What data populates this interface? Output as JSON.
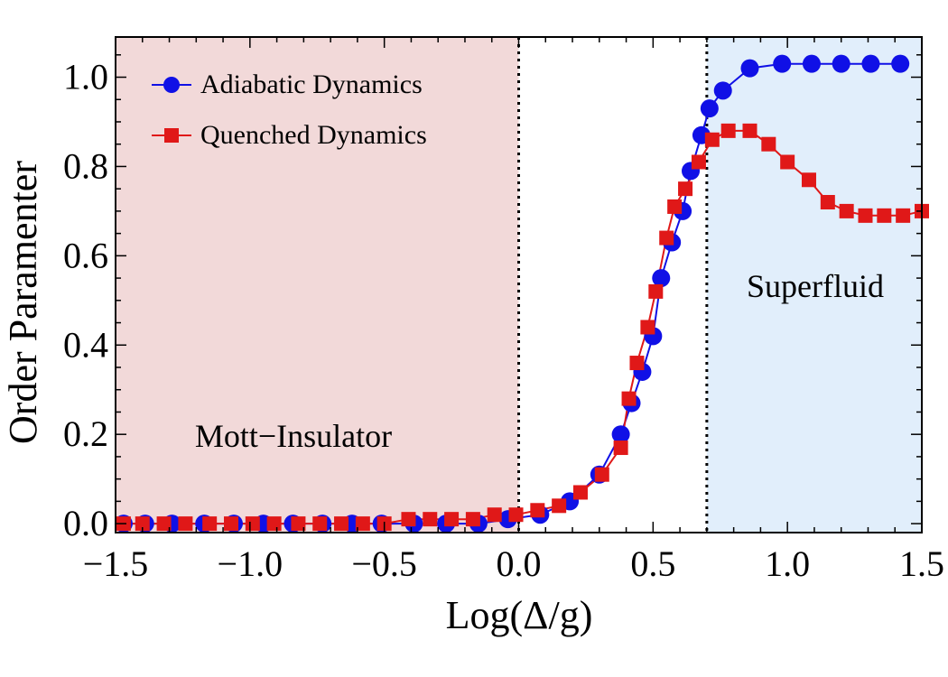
{
  "chart_data": {
    "type": "line",
    "title": "",
    "xlabel": "Log(Δ/g)",
    "ylabel": "Order Paramenter",
    "xlim": [
      -1.5,
      1.5
    ],
    "ylim": [
      -0.02,
      1.09
    ],
    "xticks": [
      -1.5,
      -1.0,
      -0.5,
      0.0,
      0.5,
      1.0,
      1.5
    ],
    "xtick_labels": [
      "−1.5",
      "−1.0",
      "−0.5",
      "0.0",
      "0.5",
      "1.0",
      "1.5"
    ],
    "yticks": [
      0.0,
      0.2,
      0.4,
      0.6,
      0.8,
      1.0
    ],
    "ytick_labels": [
      "0.0",
      "0.2",
      "0.4",
      "0.6",
      "0.8",
      "1.0"
    ],
    "regions": [
      {
        "label": "Mott−Insulator",
        "x_range": [
          -1.5,
          0.0
        ],
        "color": "#f2d9d9"
      },
      {
        "label": "Superfluid",
        "x_range": [
          0.7,
          1.5
        ],
        "color": "#e1eefb"
      }
    ],
    "boundary_lines": [
      0.0,
      0.7
    ],
    "legend_position": "top-left",
    "series": [
      {
        "name": "Adiabatic Dynamics",
        "color": "#1010e6",
        "marker": "circle",
        "x": [
          -1.47,
          -1.39,
          -1.29,
          -1.17,
          -1.06,
          -0.95,
          -0.84,
          -0.73,
          -0.62,
          -0.51,
          -0.39,
          -0.27,
          -0.15,
          -0.04,
          0.08,
          0.19,
          0.3,
          0.38,
          0.42,
          0.46,
          0.5,
          0.53,
          0.57,
          0.61,
          0.64,
          0.68,
          0.71,
          0.76,
          0.86,
          0.98,
          1.09,
          1.2,
          1.31,
          1.42
        ],
        "y": [
          0.0,
          0.0,
          0.0,
          0.0,
          0.0,
          0.0,
          0.0,
          0.0,
          0.0,
          0.0,
          0.0,
          0.0,
          0.0,
          0.01,
          0.02,
          0.05,
          0.11,
          0.2,
          0.27,
          0.34,
          0.42,
          0.55,
          0.63,
          0.7,
          0.79,
          0.87,
          0.93,
          0.97,
          1.02,
          1.03,
          1.03,
          1.03,
          1.03,
          1.03
        ]
      },
      {
        "name": "Quenched Dynamics",
        "color": "#e01818",
        "marker": "square",
        "x": [
          -1.47,
          -1.4,
          -1.32,
          -1.24,
          -1.15,
          -1.07,
          -0.99,
          -0.91,
          -0.82,
          -0.74,
          -0.66,
          -0.58,
          -0.5,
          -0.41,
          -0.33,
          -0.25,
          -0.17,
          -0.09,
          -0.01,
          0.07,
          0.15,
          0.23,
          0.31,
          0.38,
          0.41,
          0.44,
          0.48,
          0.51,
          0.55,
          0.58,
          0.62,
          0.67,
          0.72,
          0.78,
          0.86,
          0.93,
          1.0,
          1.08,
          1.15,
          1.22,
          1.29,
          1.36,
          1.43,
          1.5
        ],
        "y": [
          0.0,
          0.0,
          0.0,
          0.0,
          0.0,
          0.0,
          0.0,
          0.0,
          0.0,
          0.0,
          0.0,
          0.0,
          0.0,
          0.01,
          0.01,
          0.01,
          0.01,
          0.02,
          0.02,
          0.03,
          0.04,
          0.07,
          0.11,
          0.17,
          0.28,
          0.36,
          0.44,
          0.52,
          0.64,
          0.71,
          0.75,
          0.81,
          0.86,
          0.88,
          0.88,
          0.85,
          0.81,
          0.77,
          0.72,
          0.7,
          0.69,
          0.69,
          0.69,
          0.7
        ]
      }
    ]
  }
}
